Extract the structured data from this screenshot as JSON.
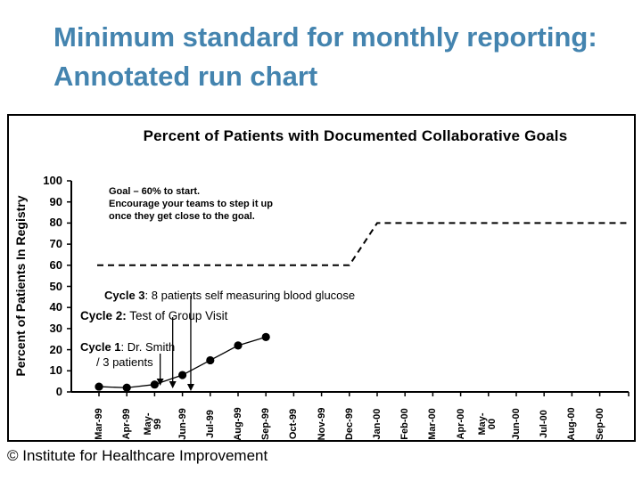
{
  "slide": {
    "title_line1": "Minimum standard for monthly reporting:",
    "title_line2": "Annotated run chart",
    "title_color": "#4484AF",
    "footer": "© Institute for Healthcare Improvement"
  },
  "chart_data": {
    "type": "line",
    "title": "Percent of Patients with Documented Collaborative Goals",
    "ylabel": "Percent of Patients In Registry",
    "xlabel": "",
    "ylim": [
      0,
      100
    ],
    "yticks": [
      0,
      10,
      20,
      30,
      40,
      50,
      60,
      70,
      80,
      90,
      100
    ],
    "grid": false,
    "legend": false,
    "categories": [
      "Mar-99",
      "Apr-99",
      "May-99",
      "Jun-99",
      "Jul-99",
      "Aug-99",
      "Sep-99",
      "Oct-99",
      "Nov-99",
      "Dec-99",
      "Jan-00",
      "Feb-00",
      "Mar-00",
      "Apr-00",
      "May-00",
      "Jun-00",
      "Jul-00",
      "Aug-00",
      "Sep-00"
    ],
    "series": [
      {
        "name": "Percent of patients with documented collaborative goals",
        "marker": "filled-circle",
        "color": "#000000",
        "values_start_category": "Mar-99",
        "values": [
          2.5,
          2,
          3.5,
          8,
          15,
          22,
          26
        ]
      }
    ],
    "goal_line": {
      "style": "dashed",
      "color": "#000000",
      "segments": [
        {
          "start": "Mar-99",
          "end": "Dec-99",
          "value": 60
        },
        {
          "start": "Jan-00",
          "end": "Sep-00",
          "value": 80
        }
      ]
    },
    "annotations": {
      "goal_note": {
        "lines": [
          "Goal – 60% to start.",
          "Encourage your teams to step it up",
          "once they get close to the goal."
        ]
      },
      "cycle3": {
        "label": "Cycle 3",
        "text": ": 8 patients self measuring blood glucose",
        "arrow_month_index": 3.3
      },
      "cycle2": {
        "label": "Cycle 2:",
        "text": " Test of Group Visit",
        "arrow_month_index": 2.65
      },
      "cycle1": {
        "label": "Cycle 1",
        "text": ": Dr. Smith",
        "text_line2": "/ 3 patients",
        "arrow_month_index": 2.2
      }
    }
  }
}
